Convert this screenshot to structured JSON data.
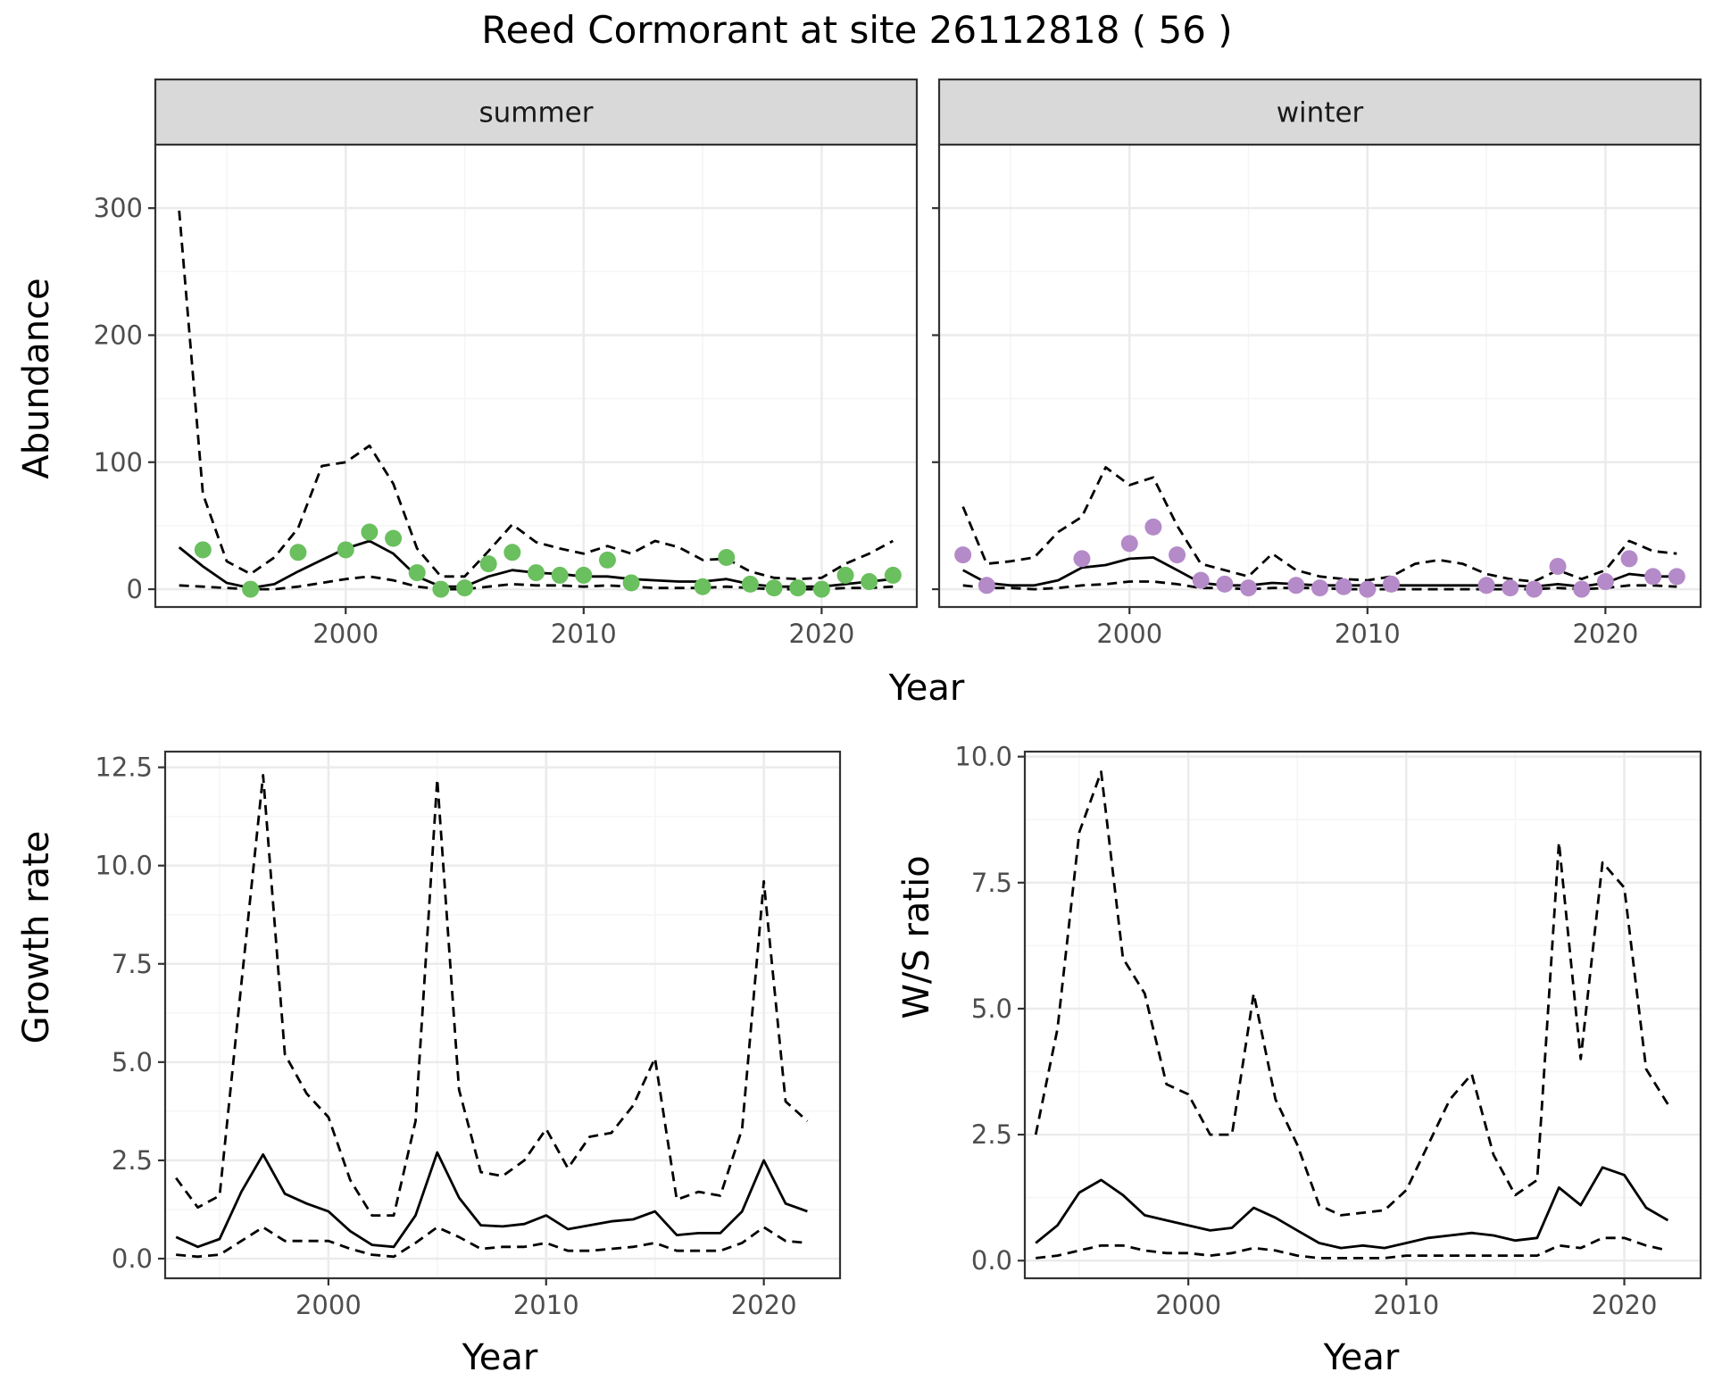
{
  "title": "Reed Cormorant at site 26112818 ( 56 )",
  "colors": {
    "summer_points": "#6abf5e",
    "winter_points": "#b48ac8",
    "lines": "#000000",
    "grid_major": "#ebebeb",
    "grid_minor": "#f5f5f5",
    "strip_fill": "#d9d9d9"
  },
  "chart_data": [
    {
      "type": "line",
      "panel": "summer",
      "strip_label": "summer",
      "xlabel": "Year",
      "ylabel": "Abundance",
      "xlim": [
        1992,
        2024
      ],
      "ylim": [
        -14,
        350
      ],
      "x_ticks": [
        2000,
        2010,
        2020
      ],
      "y_ticks": [
        0,
        100,
        200,
        300
      ],
      "grid": true,
      "series": [
        {
          "role": "estimate",
          "style": "solid",
          "x": [
            1993,
            1994,
            1995,
            1996,
            1997,
            1998,
            1999,
            2000,
            2001,
            2002,
            2003,
            2004,
            2005,
            2006,
            2007,
            2008,
            2009,
            2010,
            2011,
            2012,
            2013,
            2014,
            2015,
            2016,
            2017,
            2018,
            2019,
            2020,
            2021,
            2022,
            2023
          ],
          "y": [
            33,
            18,
            5,
            1,
            4,
            14,
            23,
            32,
            38,
            28,
            10,
            2,
            2,
            10,
            15,
            13,
            12,
            10,
            10,
            8,
            7,
            6,
            6,
            8,
            4,
            2,
            2,
            2,
            4,
            6,
            8
          ]
        },
        {
          "role": "upper",
          "style": "dashed",
          "x": [
            1993,
            1994,
            1995,
            1996,
            1997,
            1998,
            1999,
            2000,
            2001,
            2002,
            2003,
            2004,
            2005,
            2006,
            2007,
            2008,
            2009,
            2010,
            2011,
            2012,
            2013,
            2014,
            2015,
            2016,
            2017,
            2018,
            2019,
            2020,
            2021,
            2022,
            2023
          ],
          "y": [
            298,
            75,
            22,
            12,
            25,
            48,
            97,
            100,
            113,
            83,
            32,
            10,
            10,
            30,
            51,
            37,
            32,
            28,
            34,
            28,
            38,
            33,
            23,
            24,
            14,
            9,
            8,
            9,
            20,
            28,
            38
          ]
        },
        {
          "role": "lower",
          "style": "dashed",
          "x": [
            1993,
            1994,
            1995,
            1996,
            1997,
            1998,
            1999,
            2000,
            2001,
            2002,
            2003,
            2004,
            2005,
            2006,
            2007,
            2008,
            2009,
            2010,
            2011,
            2012,
            2013,
            2014,
            2015,
            2016,
            2017,
            2018,
            2019,
            2020,
            2021,
            2022,
            2023
          ],
          "y": [
            3,
            2,
            1,
            0,
            0,
            2,
            5,
            8,
            10,
            7,
            2,
            0,
            0,
            2,
            4,
            3,
            3,
            2,
            3,
            2,
            1,
            1,
            1,
            2,
            1,
            0,
            0,
            0,
            1,
            1,
            2
          ]
        },
        {
          "role": "observed",
          "style": "points",
          "x": [
            1994,
            1996,
            1998,
            2000,
            2001,
            2002,
            2003,
            2004,
            2005,
            2006,
            2007,
            2008,
            2009,
            2010,
            2011,
            2012,
            2015,
            2016,
            2017,
            2018,
            2019,
            2020,
            2021,
            2022,
            2023
          ],
          "y": [
            31,
            0,
            29,
            31,
            45,
            40,
            13,
            0,
            1,
            20,
            29,
            13,
            11,
            11,
            23,
            5,
            2,
            25,
            4,
            1,
            1,
            0,
            11,
            6,
            11
          ]
        }
      ]
    },
    {
      "type": "line",
      "panel": "winter",
      "strip_label": "winter",
      "xlabel": "Year",
      "ylabel": "Abundance",
      "xlim": [
        1992,
        2024
      ],
      "ylim": [
        -14,
        350
      ],
      "x_ticks": [
        2000,
        2010,
        2020
      ],
      "y_ticks": [
        0,
        100,
        200,
        300
      ],
      "grid": true,
      "series": [
        {
          "role": "estimate",
          "style": "solid",
          "x": [
            1993,
            1994,
            1995,
            1996,
            1997,
            1998,
            1999,
            2000,
            2001,
            2002,
            2003,
            2004,
            2005,
            2006,
            2007,
            2008,
            2009,
            2010,
            2011,
            2012,
            2013,
            2014,
            2015,
            2016,
            2017,
            2018,
            2019,
            2020,
            2021,
            2022,
            2023
          ],
          "y": [
            15,
            5,
            3,
            3,
            7,
            17,
            19,
            24,
            25,
            15,
            5,
            3,
            3,
            5,
            4,
            3,
            3,
            3,
            3,
            3,
            3,
            3,
            3,
            3,
            2,
            4,
            2,
            5,
            12,
            10,
            10
          ]
        },
        {
          "role": "upper",
          "style": "dashed",
          "x": [
            1993,
            1994,
            1995,
            1996,
            1997,
            1998,
            1999,
            2000,
            2001,
            2002,
            2003,
            2004,
            2005,
            2006,
            2007,
            2008,
            2009,
            2010,
            2011,
            2012,
            2013,
            2014,
            2015,
            2016,
            2017,
            2018,
            2019,
            2020,
            2021,
            2022,
            2023
          ],
          "y": [
            65,
            20,
            22,
            25,
            45,
            57,
            96,
            82,
            88,
            50,
            20,
            15,
            10,
            28,
            15,
            10,
            8,
            7,
            10,
            20,
            23,
            20,
            12,
            8,
            6,
            15,
            8,
            15,
            38,
            30,
            28
          ]
        },
        {
          "role": "lower",
          "style": "dashed",
          "x": [
            1993,
            1994,
            1995,
            1996,
            1997,
            1998,
            1999,
            2000,
            2001,
            2002,
            2003,
            2004,
            2005,
            2006,
            2007,
            2008,
            2009,
            2010,
            2011,
            2012,
            2013,
            2014,
            2015,
            2016,
            2017,
            2018,
            2019,
            2020,
            2021,
            2022,
            2023
          ],
          "y": [
            3,
            1,
            1,
            0,
            1,
            3,
            4,
            6,
            6,
            4,
            1,
            1,
            0,
            1,
            1,
            1,
            0,
            0,
            0,
            0,
            0,
            0,
            0,
            0,
            0,
            1,
            0,
            1,
            3,
            3,
            2
          ]
        },
        {
          "role": "observed",
          "style": "points",
          "x": [
            1993,
            1994,
            1998,
            2000,
            2001,
            2002,
            2003,
            2004,
            2005,
            2007,
            2008,
            2009,
            2010,
            2011,
            2015,
            2016,
            2017,
            2018,
            2019,
            2020,
            2021,
            2022,
            2023
          ],
          "y": [
            27,
            3,
            24,
            36,
            49,
            27,
            7,
            4,
            1,
            3,
            1,
            2,
            0,
            4,
            3,
            1,
            0,
            18,
            0,
            6,
            24,
            10,
            10
          ]
        }
      ]
    },
    {
      "type": "line",
      "panel": "growth",
      "xlabel": "Year",
      "ylabel": "Growth rate",
      "xlim": [
        1992.5,
        2023.5
      ],
      "ylim": [
        -0.5,
        12.9
      ],
      "x_ticks": [
        2000,
        2010,
        2020
      ],
      "y_ticks": [
        0.0,
        2.5,
        5.0,
        7.5,
        10.0,
        12.5
      ],
      "y_tick_labels": [
        "0.0",
        "2.5",
        "5.0",
        "7.5",
        "10.0",
        "12.5"
      ],
      "grid": true,
      "series": [
        {
          "role": "estimate",
          "style": "solid",
          "x": [
            1993,
            1994,
            1995,
            1996,
            1997,
            1998,
            1999,
            2000,
            2001,
            2002,
            2003,
            2004,
            2005,
            2006,
            2007,
            2008,
            2009,
            2010,
            2011,
            2012,
            2013,
            2014,
            2015,
            2016,
            2017,
            2018,
            2019,
            2020,
            2021,
            2022
          ],
          "y": [
            0.55,
            0.3,
            0.5,
            1.7,
            2.65,
            1.65,
            1.4,
            1.2,
            0.7,
            0.35,
            0.3,
            1.1,
            2.7,
            1.55,
            0.85,
            0.82,
            0.88,
            1.1,
            0.75,
            0.85,
            0.95,
            1.0,
            1.2,
            0.6,
            0.65,
            0.65,
            1.2,
            2.5,
            1.4,
            1.2
          ]
        },
        {
          "role": "upper",
          "style": "dashed",
          "x": [
            1993,
            1994,
            1995,
            1996,
            1997,
            1998,
            1999,
            2000,
            2001,
            2002,
            2003,
            2004,
            2005,
            2006,
            2007,
            2008,
            2009,
            2010,
            2011,
            2012,
            2013,
            2014,
            2015,
            2016,
            2017,
            2018,
            2019,
            2020,
            2021,
            2022
          ],
          "y": [
            2.05,
            1.3,
            1.6,
            7.0,
            12.3,
            5.2,
            4.2,
            3.6,
            2.0,
            1.1,
            1.1,
            3.5,
            12.2,
            4.3,
            2.2,
            2.1,
            2.5,
            3.3,
            2.3,
            3.1,
            3.2,
            3.9,
            5.1,
            1.5,
            1.7,
            1.6,
            3.3,
            9.6,
            4.0,
            3.5
          ]
        },
        {
          "role": "lower",
          "style": "dashed",
          "x": [
            1993,
            1994,
            1995,
            1996,
            1997,
            1998,
            1999,
            2000,
            2001,
            2002,
            2003,
            2004,
            2005,
            2006,
            2007,
            2008,
            2009,
            2010,
            2011,
            2012,
            2013,
            2014,
            2015,
            2016,
            2017,
            2018,
            2019,
            2020,
            2021,
            2022
          ],
          "y": [
            0.1,
            0.05,
            0.1,
            0.45,
            0.8,
            0.45,
            0.45,
            0.45,
            0.25,
            0.1,
            0.05,
            0.4,
            0.8,
            0.55,
            0.25,
            0.3,
            0.3,
            0.4,
            0.2,
            0.2,
            0.25,
            0.3,
            0.4,
            0.2,
            0.2,
            0.2,
            0.4,
            0.8,
            0.45,
            0.4
          ]
        }
      ]
    },
    {
      "type": "line",
      "panel": "ws_ratio",
      "xlabel": "Year",
      "ylabel": "W/S ratio",
      "xlim": [
        1992.5,
        2023.5
      ],
      "ylim": [
        -0.35,
        10.1
      ],
      "x_ticks": [
        2000,
        2010,
        2020
      ],
      "y_ticks": [
        0.0,
        2.5,
        5.0,
        7.5,
        10.0
      ],
      "y_tick_labels": [
        "0.0",
        "2.5",
        "5.0",
        "7.5",
        "10.0"
      ],
      "grid": true,
      "series": [
        {
          "role": "estimate",
          "style": "solid",
          "x": [
            1993,
            1994,
            1995,
            1996,
            1997,
            1998,
            1999,
            2000,
            2001,
            2002,
            2003,
            2004,
            2005,
            2006,
            2007,
            2008,
            2009,
            2010,
            2011,
            2012,
            2013,
            2014,
            2015,
            2016,
            2017,
            2018,
            2019,
            2020,
            2021,
            2022
          ],
          "y": [
            0.35,
            0.7,
            1.35,
            1.6,
            1.3,
            0.9,
            0.8,
            0.7,
            0.6,
            0.65,
            1.05,
            0.85,
            0.6,
            0.35,
            0.25,
            0.3,
            0.25,
            0.35,
            0.45,
            0.5,
            0.55,
            0.5,
            0.4,
            0.45,
            1.45,
            1.1,
            1.85,
            1.7,
            1.05,
            0.8
          ]
        },
        {
          "role": "upper",
          "style": "dashed",
          "x": [
            1993,
            1994,
            1995,
            1996,
            1997,
            1998,
            1999,
            2000,
            2001,
            2002,
            2003,
            2004,
            2005,
            2006,
            2007,
            2008,
            2009,
            2010,
            2011,
            2012,
            2013,
            2014,
            2015,
            2016,
            2017,
            2018,
            2019,
            2020,
            2021,
            2022
          ],
          "y": [
            2.5,
            4.6,
            8.5,
            9.7,
            6.0,
            5.3,
            3.5,
            3.3,
            2.5,
            2.5,
            5.3,
            3.2,
            2.3,
            1.1,
            0.9,
            0.95,
            1.0,
            1.4,
            2.3,
            3.2,
            3.7,
            2.1,
            1.3,
            1.6,
            8.3,
            4.0,
            7.9,
            7.4,
            3.8,
            3.1
          ]
        },
        {
          "role": "lower",
          "style": "dashed",
          "x": [
            1993,
            1994,
            1995,
            1996,
            1997,
            1998,
            1999,
            2000,
            2001,
            2002,
            2003,
            2004,
            2005,
            2006,
            2007,
            2008,
            2009,
            2010,
            2011,
            2012,
            2013,
            2014,
            2015,
            2016,
            2017,
            2018,
            2019,
            2020,
            2021,
            2022
          ],
          "y": [
            0.05,
            0.1,
            0.2,
            0.3,
            0.3,
            0.2,
            0.15,
            0.15,
            0.1,
            0.15,
            0.25,
            0.2,
            0.1,
            0.05,
            0.05,
            0.05,
            0.05,
            0.1,
            0.1,
            0.1,
            0.1,
            0.1,
            0.1,
            0.1,
            0.3,
            0.25,
            0.45,
            0.45,
            0.3,
            0.2
          ]
        }
      ]
    }
  ]
}
